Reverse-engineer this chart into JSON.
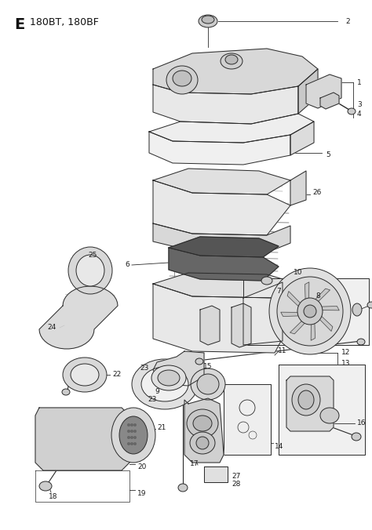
{
  "title_letter": "E",
  "title_model": "180BT, 180BF",
  "background_color": "#ffffff",
  "line_color": "#2a2a2a",
  "label_color": "#1a1a1a",
  "label_fontsize": 6.5,
  "title_fontsize": 12,
  "fig_width": 4.74,
  "fig_height": 6.76,
  "dpi": 100,
  "gray_light": "#e8e8e8",
  "gray_mid": "#cccccc",
  "gray_dark": "#888888",
  "gray_fill": "#d4d4d4"
}
